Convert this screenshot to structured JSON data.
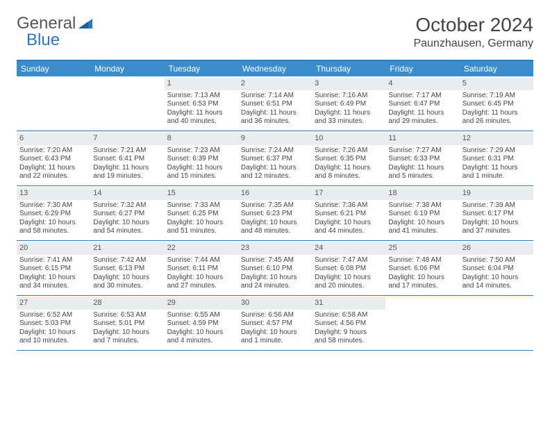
{
  "brand": {
    "part1": "General",
    "part2": "Blue"
  },
  "colors": {
    "brand_blue": "#2b77c0",
    "header_bg": "#3b8ccc",
    "daynum_bg": "#e9edf0",
    "text": "#444444",
    "bg": "#ffffff"
  },
  "title": "October 2024",
  "location": "Paunzhausen, Germany",
  "day_headers": [
    "Sunday",
    "Monday",
    "Tuesday",
    "Wednesday",
    "Thursday",
    "Friday",
    "Saturday"
  ],
  "weeks": [
    [
      null,
      null,
      {
        "n": "1",
        "sr": "Sunrise: 7:13 AM",
        "ss": "Sunset: 6:53 PM",
        "dl1": "Daylight: 11 hours",
        "dl2": "and 40 minutes."
      },
      {
        "n": "2",
        "sr": "Sunrise: 7:14 AM",
        "ss": "Sunset: 6:51 PM",
        "dl1": "Daylight: 11 hours",
        "dl2": "and 36 minutes."
      },
      {
        "n": "3",
        "sr": "Sunrise: 7:16 AM",
        "ss": "Sunset: 6:49 PM",
        "dl1": "Daylight: 11 hours",
        "dl2": "and 33 minutes."
      },
      {
        "n": "4",
        "sr": "Sunrise: 7:17 AM",
        "ss": "Sunset: 6:47 PM",
        "dl1": "Daylight: 11 hours",
        "dl2": "and 29 minutes."
      },
      {
        "n": "5",
        "sr": "Sunrise: 7:19 AM",
        "ss": "Sunset: 6:45 PM",
        "dl1": "Daylight: 11 hours",
        "dl2": "and 26 minutes."
      }
    ],
    [
      {
        "n": "6",
        "sr": "Sunrise: 7:20 AM",
        "ss": "Sunset: 6:43 PM",
        "dl1": "Daylight: 11 hours",
        "dl2": "and 22 minutes."
      },
      {
        "n": "7",
        "sr": "Sunrise: 7:21 AM",
        "ss": "Sunset: 6:41 PM",
        "dl1": "Daylight: 11 hours",
        "dl2": "and 19 minutes."
      },
      {
        "n": "8",
        "sr": "Sunrise: 7:23 AM",
        "ss": "Sunset: 6:39 PM",
        "dl1": "Daylight: 11 hours",
        "dl2": "and 15 minutes."
      },
      {
        "n": "9",
        "sr": "Sunrise: 7:24 AM",
        "ss": "Sunset: 6:37 PM",
        "dl1": "Daylight: 11 hours",
        "dl2": "and 12 minutes."
      },
      {
        "n": "10",
        "sr": "Sunrise: 7:26 AM",
        "ss": "Sunset: 6:35 PM",
        "dl1": "Daylight: 11 hours",
        "dl2": "and 8 minutes."
      },
      {
        "n": "11",
        "sr": "Sunrise: 7:27 AM",
        "ss": "Sunset: 6:33 PM",
        "dl1": "Daylight: 11 hours",
        "dl2": "and 5 minutes."
      },
      {
        "n": "12",
        "sr": "Sunrise: 7:29 AM",
        "ss": "Sunset: 6:31 PM",
        "dl1": "Daylight: 11 hours",
        "dl2": "and 1 minute."
      }
    ],
    [
      {
        "n": "13",
        "sr": "Sunrise: 7:30 AM",
        "ss": "Sunset: 6:29 PM",
        "dl1": "Daylight: 10 hours",
        "dl2": "and 58 minutes."
      },
      {
        "n": "14",
        "sr": "Sunrise: 7:32 AM",
        "ss": "Sunset: 6:27 PM",
        "dl1": "Daylight: 10 hours",
        "dl2": "and 54 minutes."
      },
      {
        "n": "15",
        "sr": "Sunrise: 7:33 AM",
        "ss": "Sunset: 6:25 PM",
        "dl1": "Daylight: 10 hours",
        "dl2": "and 51 minutes."
      },
      {
        "n": "16",
        "sr": "Sunrise: 7:35 AM",
        "ss": "Sunset: 6:23 PM",
        "dl1": "Daylight: 10 hours",
        "dl2": "and 48 minutes."
      },
      {
        "n": "17",
        "sr": "Sunrise: 7:36 AM",
        "ss": "Sunset: 6:21 PM",
        "dl1": "Daylight: 10 hours",
        "dl2": "and 44 minutes."
      },
      {
        "n": "18",
        "sr": "Sunrise: 7:38 AM",
        "ss": "Sunset: 6:19 PM",
        "dl1": "Daylight: 10 hours",
        "dl2": "and 41 minutes."
      },
      {
        "n": "19",
        "sr": "Sunrise: 7:39 AM",
        "ss": "Sunset: 6:17 PM",
        "dl1": "Daylight: 10 hours",
        "dl2": "and 37 minutes."
      }
    ],
    [
      {
        "n": "20",
        "sr": "Sunrise: 7:41 AM",
        "ss": "Sunset: 6:15 PM",
        "dl1": "Daylight: 10 hours",
        "dl2": "and 34 minutes."
      },
      {
        "n": "21",
        "sr": "Sunrise: 7:42 AM",
        "ss": "Sunset: 6:13 PM",
        "dl1": "Daylight: 10 hours",
        "dl2": "and 30 minutes."
      },
      {
        "n": "22",
        "sr": "Sunrise: 7:44 AM",
        "ss": "Sunset: 6:11 PM",
        "dl1": "Daylight: 10 hours",
        "dl2": "and 27 minutes."
      },
      {
        "n": "23",
        "sr": "Sunrise: 7:45 AM",
        "ss": "Sunset: 6:10 PM",
        "dl1": "Daylight: 10 hours",
        "dl2": "and 24 minutes."
      },
      {
        "n": "24",
        "sr": "Sunrise: 7:47 AM",
        "ss": "Sunset: 6:08 PM",
        "dl1": "Daylight: 10 hours",
        "dl2": "and 20 minutes."
      },
      {
        "n": "25",
        "sr": "Sunrise: 7:48 AM",
        "ss": "Sunset: 6:06 PM",
        "dl1": "Daylight: 10 hours",
        "dl2": "and 17 minutes."
      },
      {
        "n": "26",
        "sr": "Sunrise: 7:50 AM",
        "ss": "Sunset: 6:04 PM",
        "dl1": "Daylight: 10 hours",
        "dl2": "and 14 minutes."
      }
    ],
    [
      {
        "n": "27",
        "sr": "Sunrise: 6:52 AM",
        "ss": "Sunset: 5:03 PM",
        "dl1": "Daylight: 10 hours",
        "dl2": "and 10 minutes."
      },
      {
        "n": "28",
        "sr": "Sunrise: 6:53 AM",
        "ss": "Sunset: 5:01 PM",
        "dl1": "Daylight: 10 hours",
        "dl2": "and 7 minutes."
      },
      {
        "n": "29",
        "sr": "Sunrise: 6:55 AM",
        "ss": "Sunset: 4:59 PM",
        "dl1": "Daylight: 10 hours",
        "dl2": "and 4 minutes."
      },
      {
        "n": "30",
        "sr": "Sunrise: 6:56 AM",
        "ss": "Sunset: 4:57 PM",
        "dl1": "Daylight: 10 hours",
        "dl2": "and 1 minute."
      },
      {
        "n": "31",
        "sr": "Sunrise: 6:58 AM",
        "ss": "Sunset: 4:56 PM",
        "dl1": "Daylight: 9 hours",
        "dl2": "and 58 minutes."
      },
      null,
      null
    ]
  ]
}
